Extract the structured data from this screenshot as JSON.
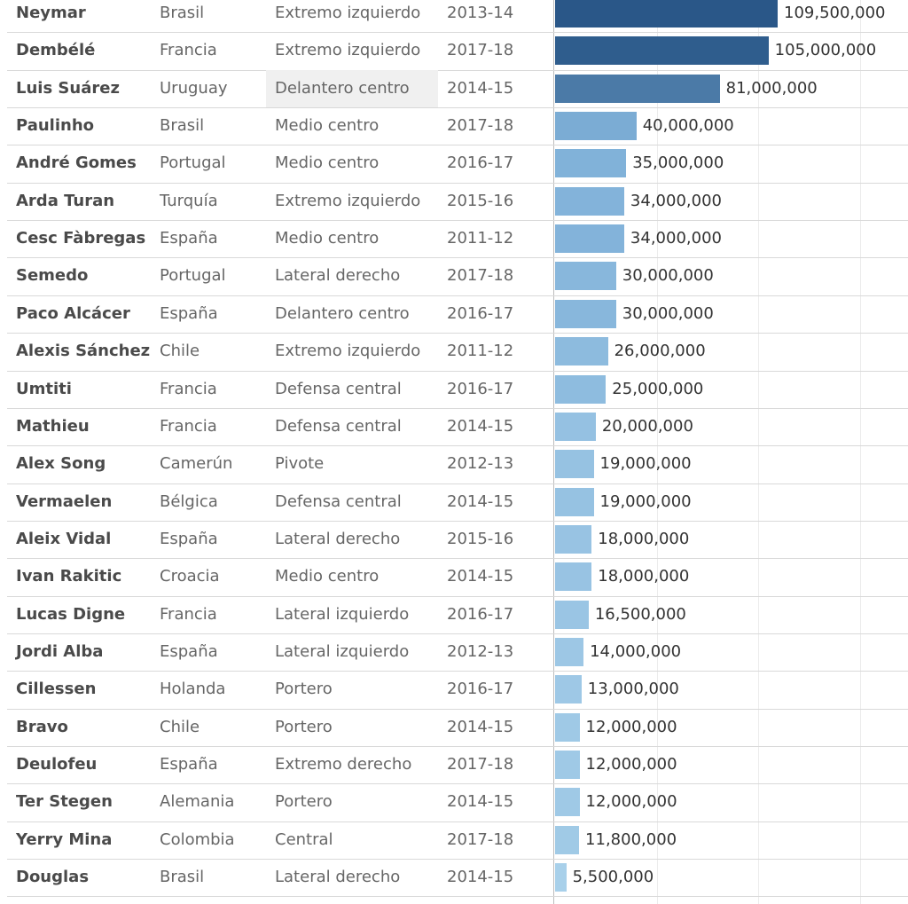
{
  "chart_data": {
    "type": "bar",
    "orientation": "horizontal",
    "columns": [
      "name",
      "country",
      "position",
      "season",
      "fee"
    ],
    "rows": [
      {
        "name": "Neymar",
        "country": "Brasil",
        "position": "Extremo izquierdo",
        "season": "2013-14",
        "value": 109500000,
        "label": "109,500,000"
      },
      {
        "name": "Dembélé",
        "country": "Francia",
        "position": "Extremo izquierdo",
        "season": "2017-18",
        "value": 105000000,
        "label": "105,000,000"
      },
      {
        "name": "Luis Suárez",
        "country": "Uruguay",
        "position": "Delantero centro",
        "season": "2014-15",
        "value": 81000000,
        "label": "81,000,000"
      },
      {
        "name": "Paulinho",
        "country": "Brasil",
        "position": "Medio centro",
        "season": "2017-18",
        "value": 40000000,
        "label": "40,000,000"
      },
      {
        "name": "André Gomes",
        "country": "Portugal",
        "position": "Medio centro",
        "season": "2016-17",
        "value": 35000000,
        "label": "35,000,000"
      },
      {
        "name": "Arda Turan",
        "country": "Turquía",
        "position": "Extremo izquierdo",
        "season": "2015-16",
        "value": 34000000,
        "label": "34,000,000"
      },
      {
        "name": "Cesc Fàbregas",
        "country": "España",
        "position": "Medio centro",
        "season": "2011-12",
        "value": 34000000,
        "label": "34,000,000"
      },
      {
        "name": "Semedo",
        "country": "Portugal",
        "position": "Lateral derecho",
        "season": "2017-18",
        "value": 30000000,
        "label": "30,000,000"
      },
      {
        "name": "Paco Alcácer",
        "country": "España",
        "position": "Delantero centro",
        "season": "2016-17",
        "value": 30000000,
        "label": "30,000,000"
      },
      {
        "name": "Alexis Sánchez",
        "country": "Chile",
        "position": "Extremo izquierdo",
        "season": "2011-12",
        "value": 26000000,
        "label": "26,000,000"
      },
      {
        "name": "Umtiti",
        "country": "Francia",
        "position": "Defensa central",
        "season": "2016-17",
        "value": 25000000,
        "label": "25,000,000"
      },
      {
        "name": "Mathieu",
        "country": "Francia",
        "position": "Defensa central",
        "season": "2014-15",
        "value": 20000000,
        "label": "20,000,000"
      },
      {
        "name": "Alex Song",
        "country": "Camerún",
        "position": "Pivote",
        "season": "2012-13",
        "value": 19000000,
        "label": "19,000,000"
      },
      {
        "name": "Vermaelen",
        "country": "Bélgica",
        "position": "Defensa central",
        "season": "2014-15",
        "value": 19000000,
        "label": "19,000,000"
      },
      {
        "name": "Aleix Vidal",
        "country": "España",
        "position": "Lateral derecho",
        "season": "2015-16",
        "value": 18000000,
        "label": "18,000,000"
      },
      {
        "name": "Ivan Rakitic",
        "country": "Croacia",
        "position": "Medio centro",
        "season": "2014-15",
        "value": 18000000,
        "label": "18,000,000"
      },
      {
        "name": "Lucas Digne",
        "country": "Francia",
        "position": "Lateral izquierdo",
        "season": "2016-17",
        "value": 16500000,
        "label": "16,500,000"
      },
      {
        "name": "Jordi Alba",
        "country": "España",
        "position": "Lateral izquierdo",
        "season": "2012-13",
        "value": 14000000,
        "label": "14,000,000"
      },
      {
        "name": "Cillessen",
        "country": "Holanda",
        "position": "Portero",
        "season": "2016-17",
        "value": 13000000,
        "label": "13,000,000"
      },
      {
        "name": "Bravo",
        "country": "Chile",
        "position": "Portero",
        "season": "2014-15",
        "value": 12000000,
        "label": "12,000,000"
      },
      {
        "name": "Deulofeu",
        "country": "España",
        "position": "Extremo derecho",
        "season": "2017-18",
        "value": 12000000,
        "label": "12,000,000"
      },
      {
        "name": "Ter Stegen",
        "country": "Alemania",
        "position": "Portero",
        "season": "2014-15",
        "value": 12000000,
        "label": "12,000,000"
      },
      {
        "name": "Yerry Mina",
        "country": "Colombia",
        "position": "Central",
        "season": "2017-18",
        "value": 11800000,
        "label": "11,800,000"
      },
      {
        "name": "Douglas",
        "country": "Brasil",
        "position": "Lateral derecho",
        "season": "2014-15",
        "value": 5500000,
        "label": "5,500,000"
      }
    ],
    "xlim": [
      0,
      170000000
    ],
    "grid_values": [
      50000000,
      100000000,
      150000000
    ],
    "highlighted_row": 2,
    "color_scale": {
      "low": "#a8d0ea",
      "mid": "#7fb0d8",
      "high": "#2a5788"
    }
  }
}
